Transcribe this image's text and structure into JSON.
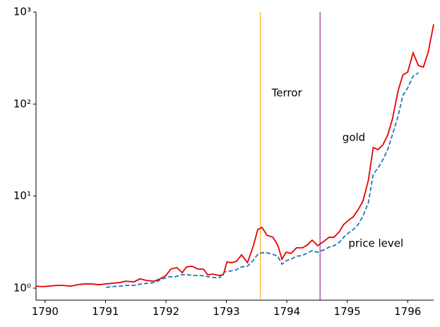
{
  "chart_data": {
    "type": "line",
    "xlim": [
      1789.85,
      1796.43
    ],
    "xticks": [
      1790,
      1791,
      1792,
      1793,
      1794,
      1795,
      1796
    ],
    "ylim": [
      0.74,
      1000
    ],
    "log_y": true,
    "yticks": [
      {
        "value": 1,
        "label": "10⁰"
      },
      {
        "value": 10,
        "label": "10¹"
      },
      {
        "value": 100,
        "label": "10²"
      },
      {
        "value": 1000,
        "label": "10³"
      }
    ],
    "vlines": [
      {
        "x": 1793.56,
        "color": "orange"
      },
      {
        "x": 1794.55,
        "color": "purple"
      }
    ],
    "annotations": [
      {
        "text": "Terror",
        "x": 1793.75,
        "y": 131
      },
      {
        "text": "gold",
        "x": 1794.92,
        "y": 43
      },
      {
        "text": "price level",
        "x": 1795.02,
        "y": 3.04
      }
    ],
    "series": [
      {
        "color": "#e50000",
        "dash": false,
        "x": [
          1789.85,
          1789.95,
          1790.07,
          1790.19,
          1790.3,
          1790.42,
          1790.54,
          1790.65,
          1790.77,
          1790.89,
          1791.01,
          1791.12,
          1791.24,
          1791.33,
          1791.47,
          1791.57,
          1791.68,
          1791.8,
          1791.88,
          1792.0,
          1792.08,
          1792.18,
          1792.27,
          1792.34,
          1792.43,
          1792.53,
          1792.62,
          1792.69,
          1792.78,
          1792.88,
          1792.95,
          1793.01,
          1793.09,
          1793.17,
          1793.25,
          1793.35,
          1793.44,
          1793.52,
          1793.59,
          1793.67,
          1793.77,
          1793.85,
          1793.92,
          1793.99,
          1794.07,
          1794.16,
          1794.26,
          1794.34,
          1794.42,
          1794.51,
          1794.61,
          1794.7,
          1794.78,
          1794.87,
          1794.94,
          1795.02,
          1795.1,
          1795.18,
          1795.26,
          1795.35,
          1795.43,
          1795.51,
          1795.59,
          1795.67,
          1795.75,
          1795.84,
          1795.92,
          1796.0,
          1796.09,
          1796.18,
          1796.26,
          1796.34,
          1796.43
        ],
        "values": [
          1.05,
          1.04,
          1.05,
          1.07,
          1.07,
          1.05,
          1.09,
          1.11,
          1.11,
          1.09,
          1.11,
          1.13,
          1.15,
          1.19,
          1.17,
          1.26,
          1.21,
          1.19,
          1.24,
          1.37,
          1.61,
          1.67,
          1.47,
          1.7,
          1.73,
          1.61,
          1.61,
          1.4,
          1.42,
          1.37,
          1.4,
          1.92,
          1.89,
          1.96,
          2.3,
          1.89,
          2.79,
          4.33,
          4.57,
          3.76,
          3.57,
          2.94,
          2.06,
          2.46,
          2.38,
          2.74,
          2.74,
          2.94,
          3.32,
          2.89,
          3.21,
          3.57,
          3.57,
          4.11,
          4.91,
          5.45,
          5.96,
          7.1,
          8.8,
          14.9,
          33.7,
          32.0,
          36.0,
          46.1,
          69.5,
          138,
          207,
          222,
          360,
          261,
          252,
          366,
          735
        ]
      },
      {
        "color": "#1f77b4",
        "dash": true,
        "x": [
          1791.01,
          1791.12,
          1791.24,
          1791.33,
          1791.47,
          1791.59,
          1791.71,
          1791.82,
          1791.94,
          1792.06,
          1792.15,
          1792.27,
          1792.35,
          1792.47,
          1792.58,
          1792.7,
          1792.8,
          1792.89,
          1792.97,
          1793.06,
          1793.16,
          1793.25,
          1793.35,
          1793.44,
          1793.52,
          1793.59,
          1793.67,
          1793.77,
          1793.85,
          1793.92,
          1793.99,
          1794.07,
          1794.16,
          1794.26,
          1794.34,
          1794.42,
          1794.51,
          1794.61,
          1794.7,
          1794.78,
          1794.87,
          1794.94,
          1795.02,
          1795.1,
          1795.18,
          1795.26,
          1795.35,
          1795.43,
          1795.51,
          1795.59,
          1795.67,
          1795.75,
          1795.84,
          1795.92,
          1796.0,
          1796.09,
          1796.18
        ],
        "values": [
          1.02,
          1.04,
          1.05,
          1.07,
          1.07,
          1.11,
          1.13,
          1.15,
          1.26,
          1.33,
          1.33,
          1.4,
          1.4,
          1.37,
          1.37,
          1.33,
          1.3,
          1.3,
          1.5,
          1.53,
          1.58,
          1.7,
          1.73,
          1.99,
          2.33,
          2.42,
          2.42,
          2.33,
          2.22,
          1.82,
          1.99,
          2.06,
          2.22,
          2.26,
          2.42,
          2.55,
          2.46,
          2.6,
          2.79,
          2.89,
          3.15,
          3.57,
          3.97,
          4.33,
          4.91,
          6.07,
          8.5,
          17.2,
          20.2,
          24.9,
          32.0,
          47.0,
          73.2,
          124,
          149,
          201,
          219
        ]
      }
    ]
  }
}
